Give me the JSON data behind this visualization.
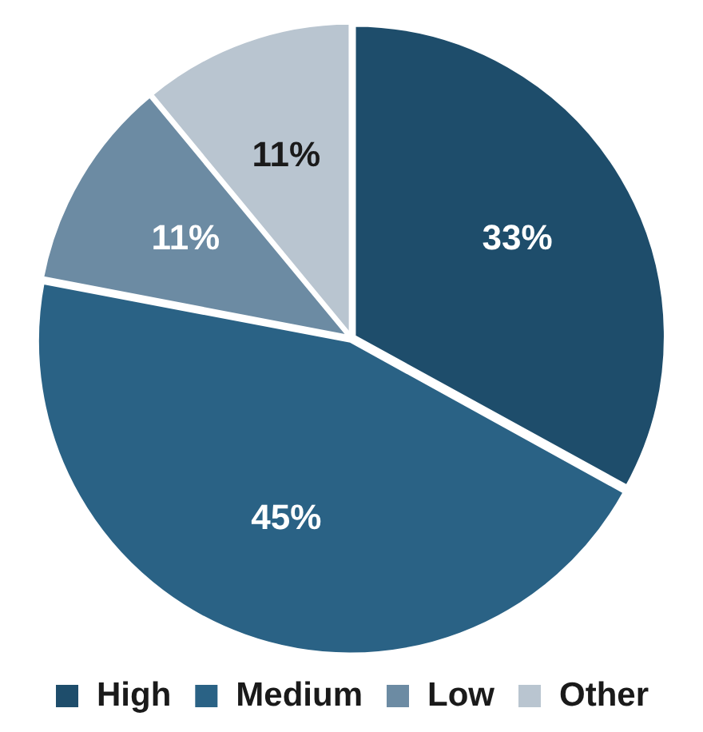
{
  "chart_data": {
    "type": "pie",
    "categories": [
      "High",
      "Medium",
      "Low",
      "Other"
    ],
    "values": [
      33,
      45,
      11,
      11
    ],
    "colors": [
      "#1e4d6b",
      "#2a6285",
      "#6c8ba3",
      "#b9c5d0"
    ],
    "value_labels": [
      "33%",
      "45%",
      "11%",
      "11%"
    ],
    "legend": "bottom"
  }
}
